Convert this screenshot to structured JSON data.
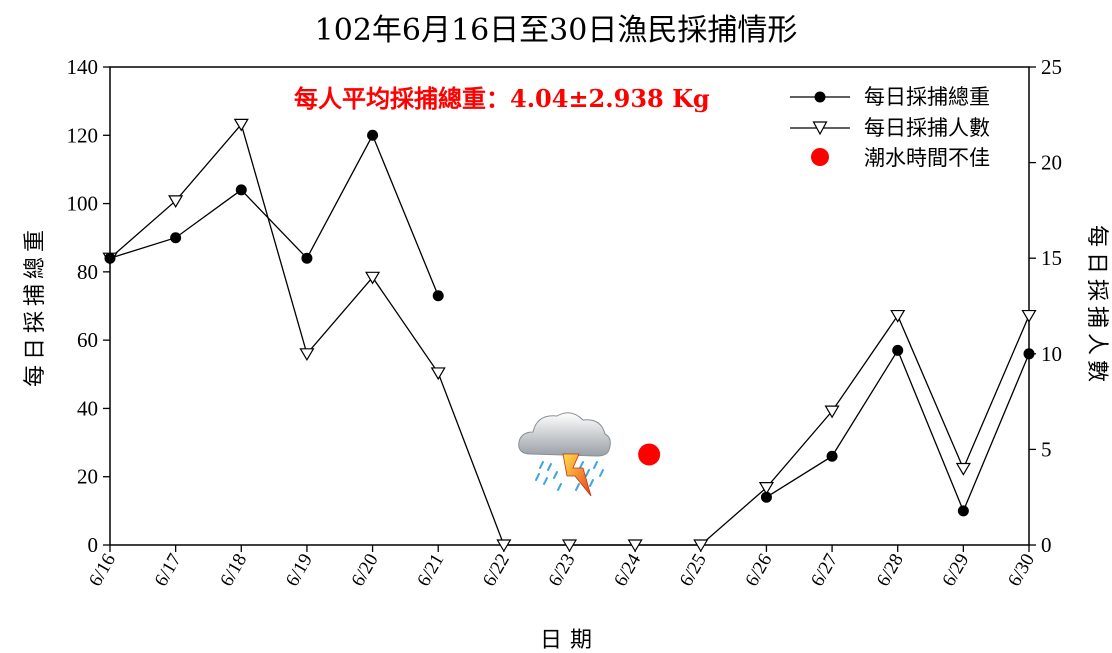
{
  "chart_data": {
    "type": "line",
    "title": "102年6月16日至30日漁民採捕情形",
    "xlabel": "日期",
    "ylabel_left": "每日採捕總重",
    "ylabel_right": "每日採捕人數",
    "categories": [
      "6/16",
      "6/17",
      "6/18",
      "6/19",
      "6/20",
      "6/21",
      "6/22",
      "6/23",
      "6/24",
      "6/25",
      "6/26",
      "6/27",
      "6/28",
      "6/29",
      "6/30"
    ],
    "ylim_left": [
      0,
      140
    ],
    "yticks_left": [
      "0",
      "20",
      "40",
      "60",
      "80",
      "100",
      "120",
      "140"
    ],
    "ylim_right": [
      0,
      25
    ],
    "yticks_right": [
      "0",
      "5",
      "10",
      "15",
      "20",
      "25"
    ],
    "series": [
      {
        "name": "每日採捕總重",
        "axis": "left",
        "marker": "filled-circle",
        "values": [
          84,
          90,
          104,
          84,
          120,
          73,
          null,
          null,
          null,
          null,
          14,
          26,
          57,
          10,
          56
        ]
      },
      {
        "name": "每日採捕人數",
        "axis": "right",
        "marker": "open-triangle-down",
        "values": [
          15,
          18,
          22,
          10,
          14,
          9,
          0,
          0,
          0,
          0,
          3,
          7,
          12,
          4,
          12
        ]
      }
    ],
    "special_marker": {
      "name": "潮水時間不佳",
      "color": "#ff0000",
      "category": "6/24",
      "y_left": 26.5
    },
    "weather_icon": {
      "name": "thunderstorm-icon",
      "category": "6/23"
    },
    "annotation": {
      "text": "每人平均採捕總重：4.04±2.938 Kg",
      "color": "#ff0000"
    },
    "legend_position": "top-right",
    "grid": false
  }
}
